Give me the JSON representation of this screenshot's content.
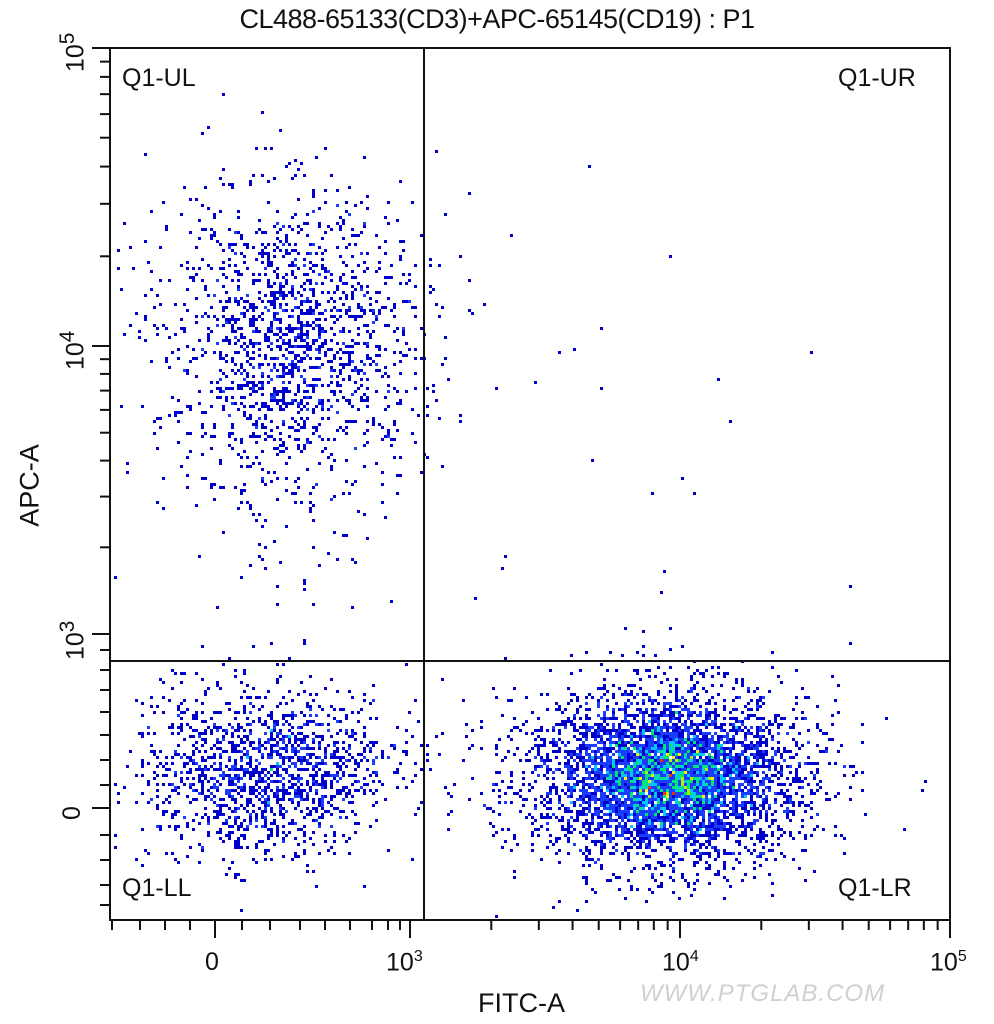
{
  "chart_data": {
    "type": "scatter",
    "subtype": "flow-cytometry-pseudocolor-dot-plot",
    "title": "CL488-65133(CD3)+APC-65145(CD19) : P1",
    "xlabel": "FITC-A",
    "ylabel": "APC-A",
    "x_scale": "biexponential",
    "y_scale": "biexponential",
    "x_ticks": [
      {
        "label": "0",
        "base": "0",
        "exp": ""
      },
      {
        "label": "10^3",
        "base": "10",
        "exp": "3"
      },
      {
        "label": "10^4",
        "base": "10",
        "exp": "4"
      },
      {
        "label": "10^5",
        "base": "10",
        "exp": "5"
      }
    ],
    "y_ticks": [
      {
        "label": "0",
        "base": "0",
        "exp": ""
      },
      {
        "label": "10^3",
        "base": "10",
        "exp": "3"
      },
      {
        "label": "10^4",
        "base": "10",
        "exp": "4"
      },
      {
        "label": "10^5",
        "base": "10",
        "exp": "5"
      }
    ],
    "quadrant_gate": {
      "name": "Q1",
      "x_threshold_approx": 1100,
      "y_threshold_approx": 850
    },
    "quadrants": [
      {
        "name": "Q1-UL",
        "position": "upper-left"
      },
      {
        "name": "Q1-UR",
        "position": "upper-right"
      },
      {
        "name": "Q1-LL",
        "position": "lower-left"
      },
      {
        "name": "Q1-LR",
        "position": "lower-right"
      }
    ],
    "populations": [
      {
        "quadrant": "Q1-UL",
        "description": "CD19+ B cells",
        "center_x": "~300",
        "center_y": "~1.0e4",
        "relative_density": "medium"
      },
      {
        "quadrant": "Q1-LL",
        "description": "double negative",
        "center_x": "~200",
        "center_y": "~0",
        "relative_density": "medium"
      },
      {
        "quadrant": "Q1-LR",
        "description": "CD3+ T cells",
        "center_x": "~8e3",
        "center_y": "~0",
        "relative_density": "high"
      },
      {
        "quadrant": "Q1-UR",
        "description": "sparse events",
        "center_x": "~5e3",
        "center_y": "~1e4",
        "relative_density": "very low"
      }
    ],
    "colormap": [
      "#0000cc",
      "#1a3cff",
      "#00c8ff",
      "#00e676",
      "#b4f000",
      "#ffee00",
      "#ff2a00"
    ],
    "grid": false,
    "legend": "none"
  },
  "quadrant_labels": {
    "ul": "Q1-UL",
    "ur": "Q1-UR",
    "ll": "Q1-LL",
    "lr": "Q1-LR"
  },
  "watermark": "WWW.PTGLAB.COM"
}
